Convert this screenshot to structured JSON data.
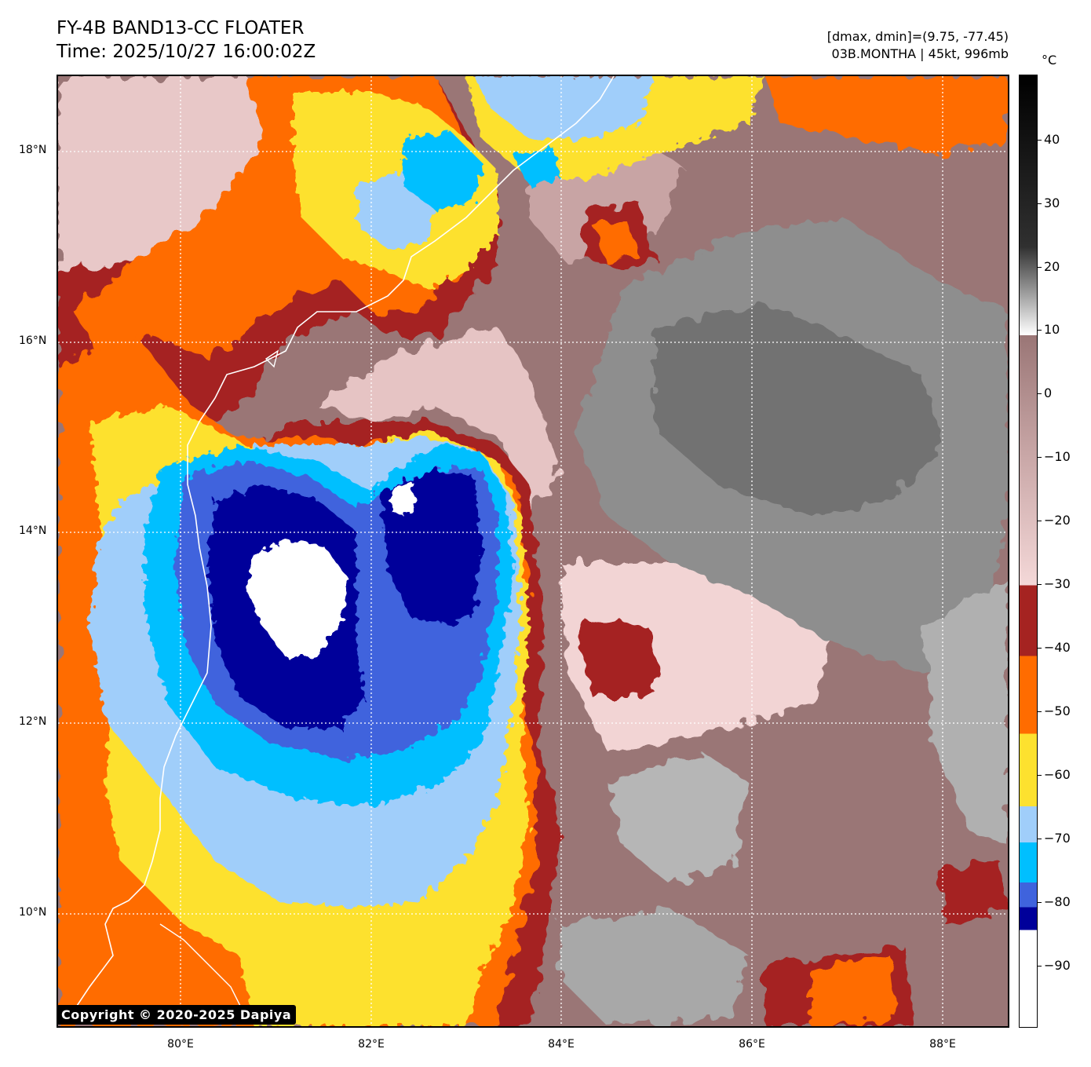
{
  "header": {
    "title_line1": "FY-4B BAND13-CC FLOATER",
    "title_line2": "Time: 2025/10/27 16:00:02Z",
    "range_text": "[dmax, dmin]=(9.75, -77.45)",
    "storm_text": "03B.MONTHA | 45kt, 996mb"
  },
  "colorbar": {
    "unit": "°C",
    "ticks": [
      "40",
      "30",
      "20",
      "10",
      "0",
      "−10",
      "−20",
      "−30",
      "−40",
      "−50",
      "−60",
      "−70",
      "−80",
      "−90"
    ],
    "colors": {
      "white_core": "#ffffff",
      "navy": "#00009a",
      "royal_blue": "#3f63dd",
      "deep_sky": "#00bfff",
      "light_blue": "#a0cefa",
      "yellow": "#fde12f",
      "orange": "#ff6c00",
      "dark_red": "#a52321",
      "pink": "#f4d8d8",
      "mauve": "#9a7676",
      "gray": "#888888"
    }
  },
  "axes": {
    "lat_labels": [
      "18°N",
      "16°N",
      "14°N",
      "12°N",
      "10°N"
    ],
    "lon_labels": [
      "80°E",
      "82°E",
      "84°E",
      "86°E",
      "88°E"
    ]
  },
  "map": {
    "storm_name": "03B.MONTHA",
    "copyright": "Copyright © 2020-2025 Dapiya"
  }
}
